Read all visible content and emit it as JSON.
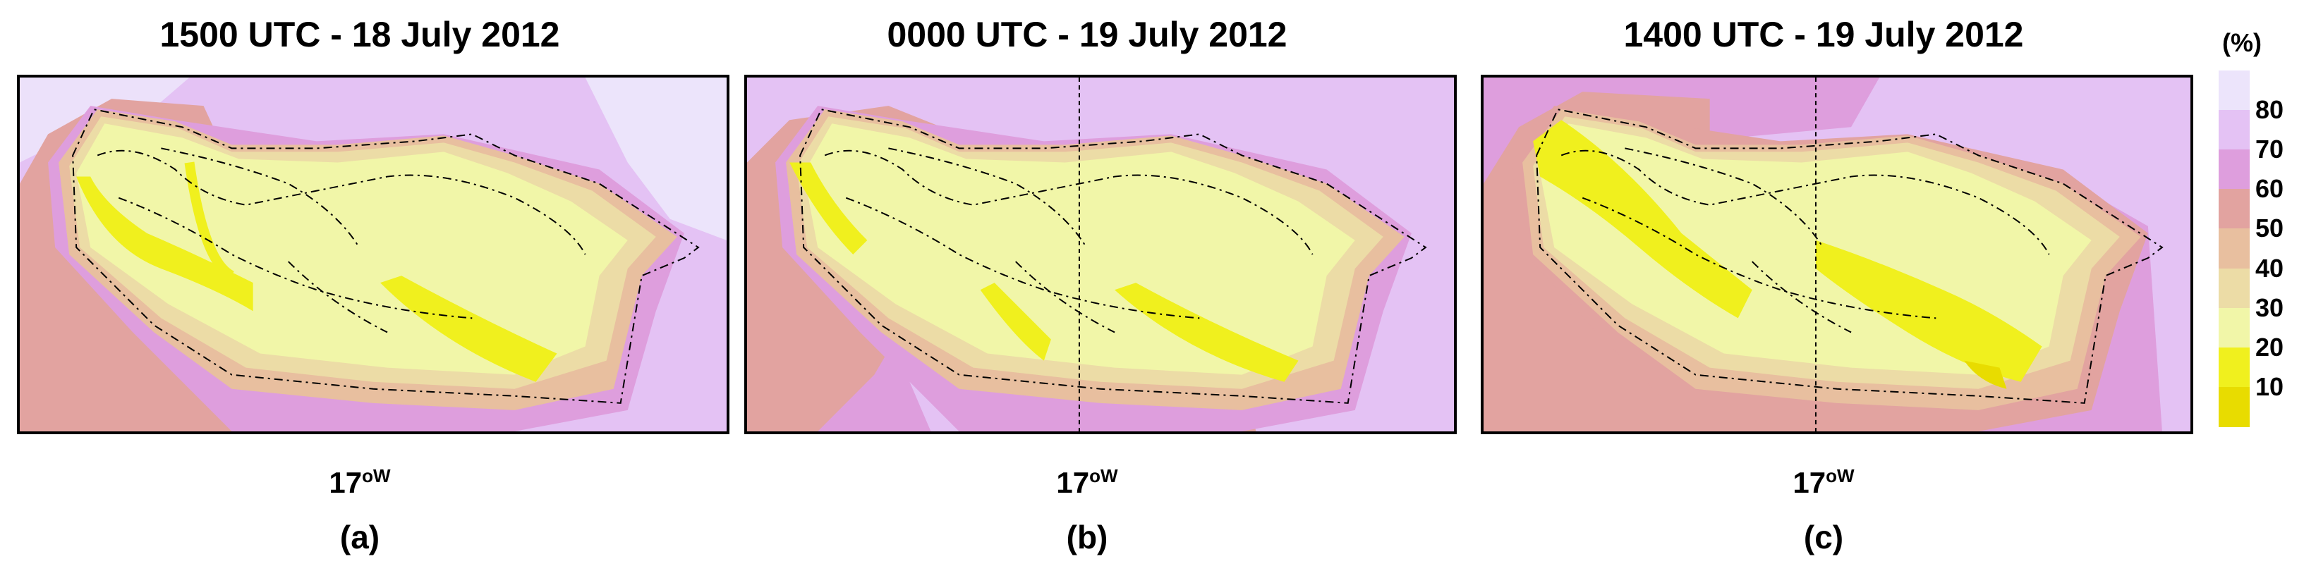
{
  "panels": [
    {
      "title": "1500 UTC - 18 July 2012",
      "lon_label": "17",
      "lon_unit": "oW",
      "letter": "(a)",
      "meridian": false
    },
    {
      "title": "0000 UTC - 19 July 2012",
      "lon_label": "17",
      "lon_unit": "oW",
      "letter": "(b)",
      "meridian": true
    },
    {
      "title": "1400 UTC - 19 July 2012",
      "lon_label": "17",
      "lon_unit": "oW",
      "letter": "(c)",
      "meridian": true
    }
  ],
  "colorbar": {
    "unit": "(%)",
    "ticks": [
      "80",
      "70",
      "60",
      "50",
      "40",
      "30",
      "20",
      "10"
    ],
    "levels": [
      {
        "range": "80-90",
        "color": "#ece4fb"
      },
      {
        "range": "70-80",
        "color": "#e4c2f4"
      },
      {
        "range": "60-70",
        "color": "#de9edd"
      },
      {
        "range": "50-60",
        "color": "#e2a3a0"
      },
      {
        "range": "40-50",
        "color": "#e8bf9f"
      },
      {
        "range": "30-40",
        "color": "#ecdca6"
      },
      {
        "range": "20-30",
        "color": "#f1f6a8"
      },
      {
        "range": "10-20",
        "color": "#f0f01e"
      },
      {
        "range": "0-10",
        "color": "#e8dc00"
      }
    ]
  }
}
